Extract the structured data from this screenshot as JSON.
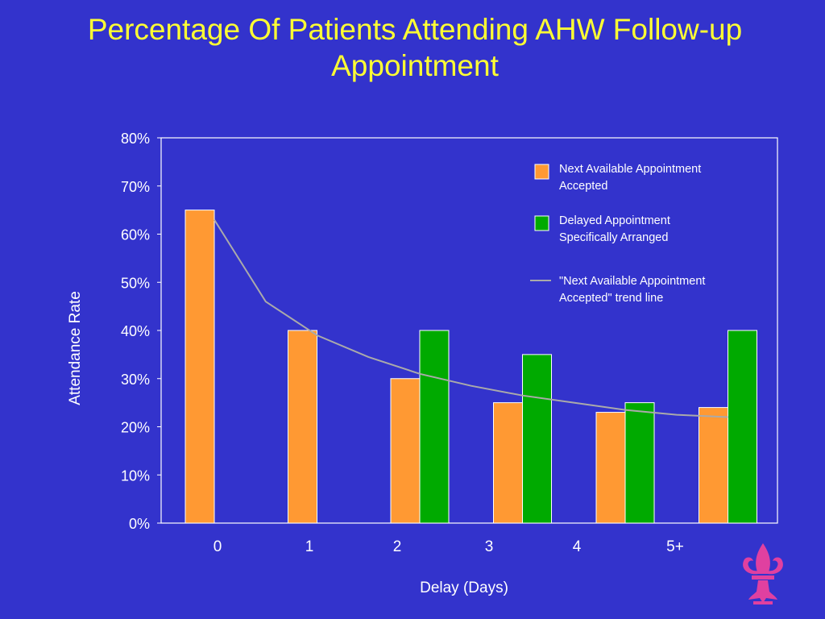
{
  "slide": {
    "title": "Percentage Of Patients Attending AHW Follow-up Appointment",
    "background": "#3333cc",
    "title_color": "#ffff33"
  },
  "chart_data": {
    "type": "bar",
    "title": "Percentage Of Patients Attending AHW Follow-up Appointment",
    "xlabel": "Delay (Days)",
    "ylabel": "Attendance Rate",
    "categories": [
      "0",
      "1",
      "2",
      "3",
      "4",
      "5+"
    ],
    "ylim": [
      0,
      80
    ],
    "yticks": [
      "0%",
      "10%",
      "20%",
      "30%",
      "40%",
      "50%",
      "60%",
      "70%",
      "80%"
    ],
    "grid": false,
    "legend_position": "top-right",
    "series": [
      {
        "name": "Next Available Appointment Accepted",
        "color": "#ff9933",
        "values": [
          65,
          40,
          30,
          25,
          23,
          24
        ]
      },
      {
        "name": "Delayed Appointment Specifically Arranged",
        "color": "#00aa00",
        "values": [
          null,
          null,
          40,
          35,
          25,
          40
        ]
      }
    ],
    "trend_line": {
      "name": "\"Next Available Appointment Accepted\" trend line",
      "color": "#aaaaaa",
      "kind": "fitted curve through orange series",
      "points": [
        [
          0,
          63
        ],
        [
          0.5,
          46
        ],
        [
          1,
          39
        ],
        [
          1.5,
          34.5
        ],
        [
          2,
          31
        ],
        [
          2.5,
          28.5
        ],
        [
          3,
          26.5
        ],
        [
          3.5,
          25
        ],
        [
          4,
          23.5
        ],
        [
          4.5,
          22.5
        ],
        [
          5,
          22
        ]
      ]
    }
  },
  "logo": {
    "name": "fleur-de-lis-icon",
    "color": "#e040a0"
  }
}
